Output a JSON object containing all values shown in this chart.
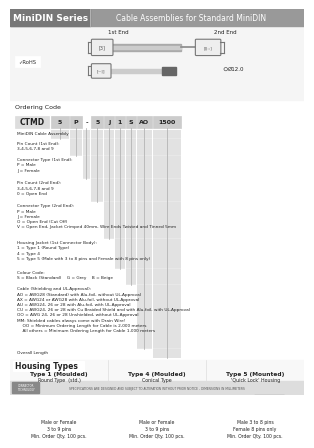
{
  "title": "Cable Assemblies for Standard MiniDIN",
  "series_title": "MiniDIN Series",
  "white": "#ffffff",
  "header_bg": "#999999",
  "header_series_bg": "#777777",
  "bg_light": "#f2f2f2",
  "gray_col": "#d0d0d0",
  "dark_text": "#222222",
  "mid_text": "#444444",
  "light_text": "#666666",
  "ordering_code_label": "Ordering Code",
  "ctmd_label": "CTMD",
  "ctmd_values": [
    "5",
    "P",
    "-",
    "5",
    "J",
    "1",
    "S",
    "AO",
    "1500"
  ],
  "ctmd_widths": [
    18,
    12,
    8,
    12,
    10,
    10,
    10,
    16,
    28
  ],
  "ordering_rows": [
    {
      "label": "MiniDIN Cable Assembly",
      "col": 0,
      "lines": 1
    },
    {
      "label": "Pin Count (1st End):\n3,4,5,6,7,8 and 9",
      "col": 1,
      "lines": 2
    },
    {
      "label": "Connector Type (1st End):\nP = Male\nJ = Female",
      "col": 2,
      "lines": 3
    },
    {
      "label": "Pin Count (2nd End):\n3,4,5,6,7,8 and 9\n0 = Open End",
      "col": 3,
      "lines": 3
    },
    {
      "label": "Connector Type (2nd End):\nP = Male\nJ = Female\nO = Open End (Cut Off)\nV = Open End, Jacket Crimped 40mm, Wire Ends Twisted and Tinned 5mm",
      "col": 4,
      "lines": 5
    },
    {
      "label": "Housing Jacket (1st Connector Body):\n1 = Type 1 (Round Type)\n4 = Type 4\n5 = Type 5 (Male with 3 to 8 pins and Female with 8 pins only)",
      "col": 5,
      "lines": 4
    },
    {
      "label": "Colour Code:\nS = Black (Standard)    G = Grey    B = Beige",
      "col": 6,
      "lines": 2
    },
    {
      "label": "Cable (Shielding and UL-Approval):\nAO = AWG28 (Standard) with Alu-foil, without UL-Approval\nAX = AWG24 or AWG28 with Alu-foil, without UL-Approval\nAU = AWG24, 26 or 28 with Alu-foil, with UL-Approval\nCU = AWG24, 26 or 28 with Cu Braided Shield and with Alu-foil, with UL-Approval\nOO = AWG 24, 26 or 28 Unshielded, without UL-Approval\nMM: Shielded cables always come with Drain Wire!\n    OO = Minimum Ordering Length for Cable is 2,000 meters\n    All others = Minimum Ordering Length for Cable 1,000 meters",
      "col": 7,
      "lines": 9
    },
    {
      "label": "Overall Length",
      "col": 8,
      "lines": 1
    }
  ],
  "housing_types": [
    {
      "name": "Type 1 (Moulded)",
      "subname": "Round Type  (std.)",
      "desc": "Male or Female\n3 to 9 pins\nMin. Order Qty. 100 pcs."
    },
    {
      "name": "Type 4 (Moulded)",
      "subname": "Conical Type",
      "desc": "Male or Female\n3 to 9 pins\nMin. Order Qty. 100 pcs."
    },
    {
      "name": "Type 5 (Mounted)",
      "subname": "'Quick Lock' Housing",
      "desc": "Male 3 to 8 pins\nFemale 8 pins only\nMin. Order Qty. 100 pcs."
    }
  ]
}
